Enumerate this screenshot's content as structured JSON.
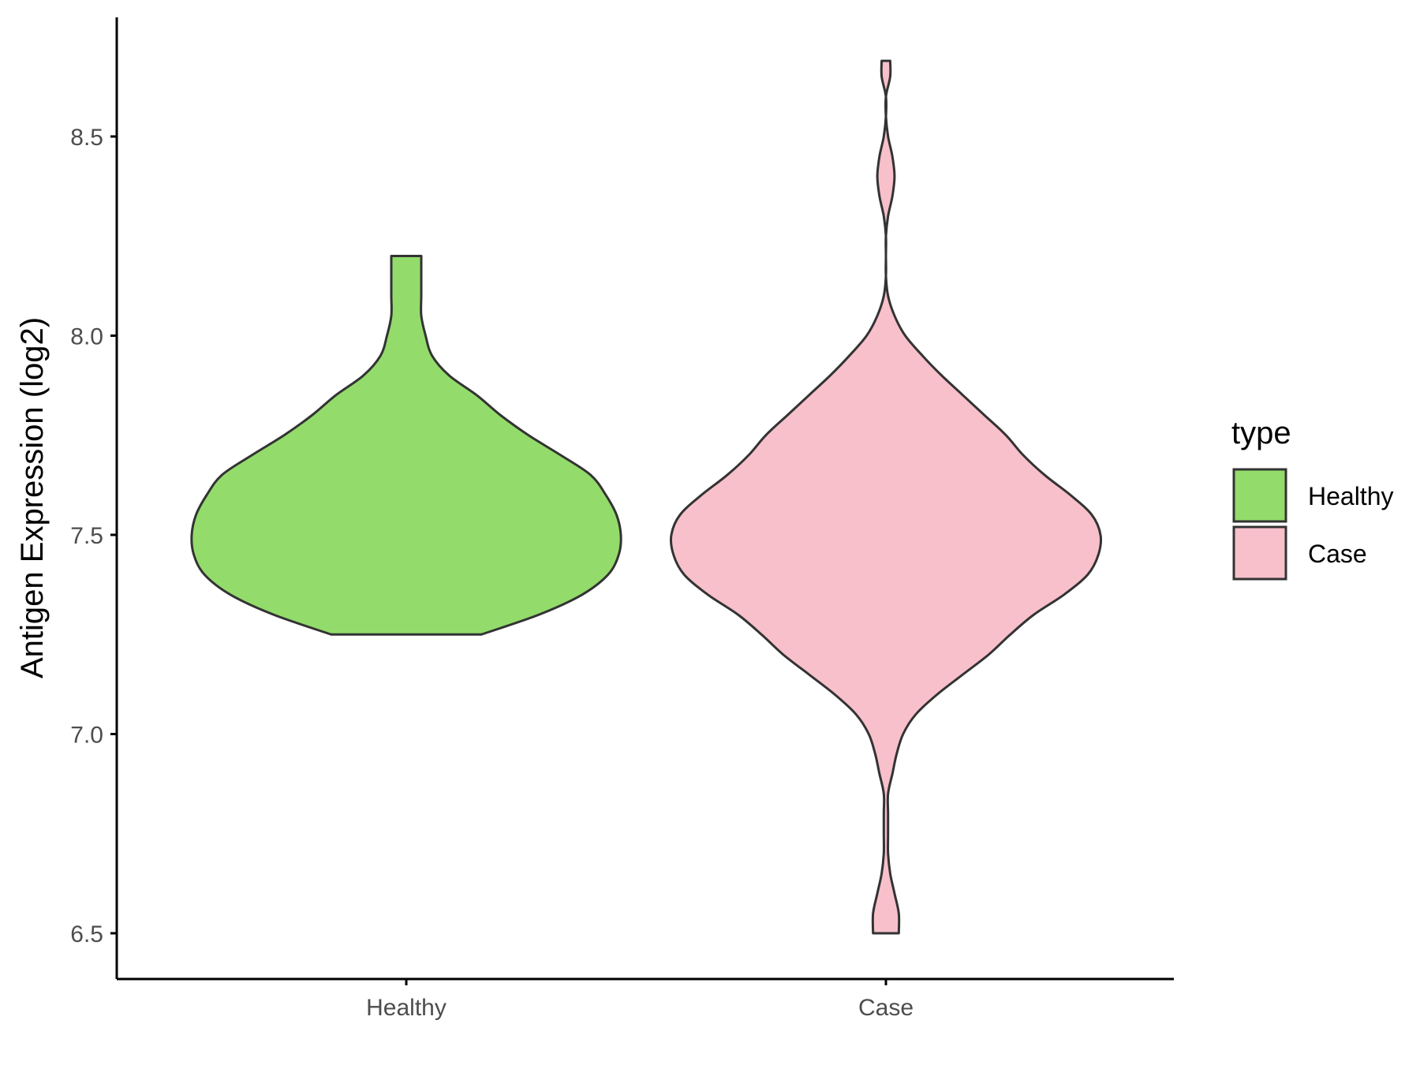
{
  "chart_data": {
    "type": "violin",
    "ylabel": "Antigen Expression (log2)",
    "xlabel": "",
    "ylim": [
      6.38,
      8.79
    ],
    "yticks": [
      "6.5",
      "7.0",
      "7.5",
      "8.0",
      "8.5"
    ],
    "categories": [
      "Healthy",
      "Case"
    ],
    "legend": {
      "title": "type",
      "position": "right",
      "entries": [
        {
          "label": "Healthy",
          "color": "#93DC6B"
        },
        {
          "label": "Case",
          "color": "#F7C0CB"
        }
      ]
    },
    "series": [
      {
        "name": "Healthy",
        "color": "#93DC6B",
        "min": 7.25,
        "max": 8.2,
        "density_profile": [
          [
            7.25,
            0.35
          ],
          [
            7.3,
            0.62
          ],
          [
            7.35,
            0.82
          ],
          [
            7.4,
            0.94
          ],
          [
            7.45,
            0.99
          ],
          [
            7.5,
            1.0
          ],
          [
            7.55,
            0.98
          ],
          [
            7.6,
            0.93
          ],
          [
            7.65,
            0.86
          ],
          [
            7.7,
            0.72
          ],
          [
            7.75,
            0.57
          ],
          [
            7.8,
            0.44
          ],
          [
            7.85,
            0.33
          ],
          [
            7.9,
            0.2
          ],
          [
            7.95,
            0.12
          ],
          [
            8.0,
            0.09
          ],
          [
            8.05,
            0.07
          ],
          [
            8.1,
            0.07
          ],
          [
            8.15,
            0.07
          ],
          [
            8.2,
            0.07
          ]
        ]
      },
      {
        "name": "Case",
        "color": "#F7C0CB",
        "min": 6.5,
        "max": 8.69,
        "density_profile": [
          [
            6.5,
            0.06
          ],
          [
            6.55,
            0.06
          ],
          [
            6.6,
            0.04
          ],
          [
            6.65,
            0.02
          ],
          [
            6.7,
            0.01
          ],
          [
            6.75,
            0.01
          ],
          [
            6.8,
            0.01
          ],
          [
            6.85,
            0.01
          ],
          [
            6.9,
            0.03
          ],
          [
            6.95,
            0.05
          ],
          [
            7.0,
            0.08
          ],
          [
            7.05,
            0.14
          ],
          [
            7.1,
            0.24
          ],
          [
            7.15,
            0.36
          ],
          [
            7.2,
            0.48
          ],
          [
            7.25,
            0.58
          ],
          [
            7.3,
            0.69
          ],
          [
            7.35,
            0.83
          ],
          [
            7.4,
            0.94
          ],
          [
            7.45,
            0.99
          ],
          [
            7.5,
            1.0
          ],
          [
            7.55,
            0.96
          ],
          [
            7.6,
            0.86
          ],
          [
            7.65,
            0.74
          ],
          [
            7.7,
            0.64
          ],
          [
            7.75,
            0.56
          ],
          [
            7.8,
            0.46
          ],
          [
            7.85,
            0.36
          ],
          [
            7.9,
            0.26
          ],
          [
            7.95,
            0.17
          ],
          [
            8.0,
            0.09
          ],
          [
            8.05,
            0.04
          ],
          [
            8.1,
            0.01
          ],
          [
            8.15,
            0.0
          ],
          [
            8.2,
            0.0
          ],
          [
            8.25,
            0.0
          ],
          [
            8.3,
            0.01
          ],
          [
            8.35,
            0.03
          ],
          [
            8.4,
            0.04
          ],
          [
            8.45,
            0.03
          ],
          [
            8.5,
            0.01
          ],
          [
            8.55,
            0.0
          ],
          [
            8.6,
            0.0
          ],
          [
            8.65,
            0.02
          ],
          [
            8.69,
            0.02
          ]
        ]
      }
    ]
  }
}
